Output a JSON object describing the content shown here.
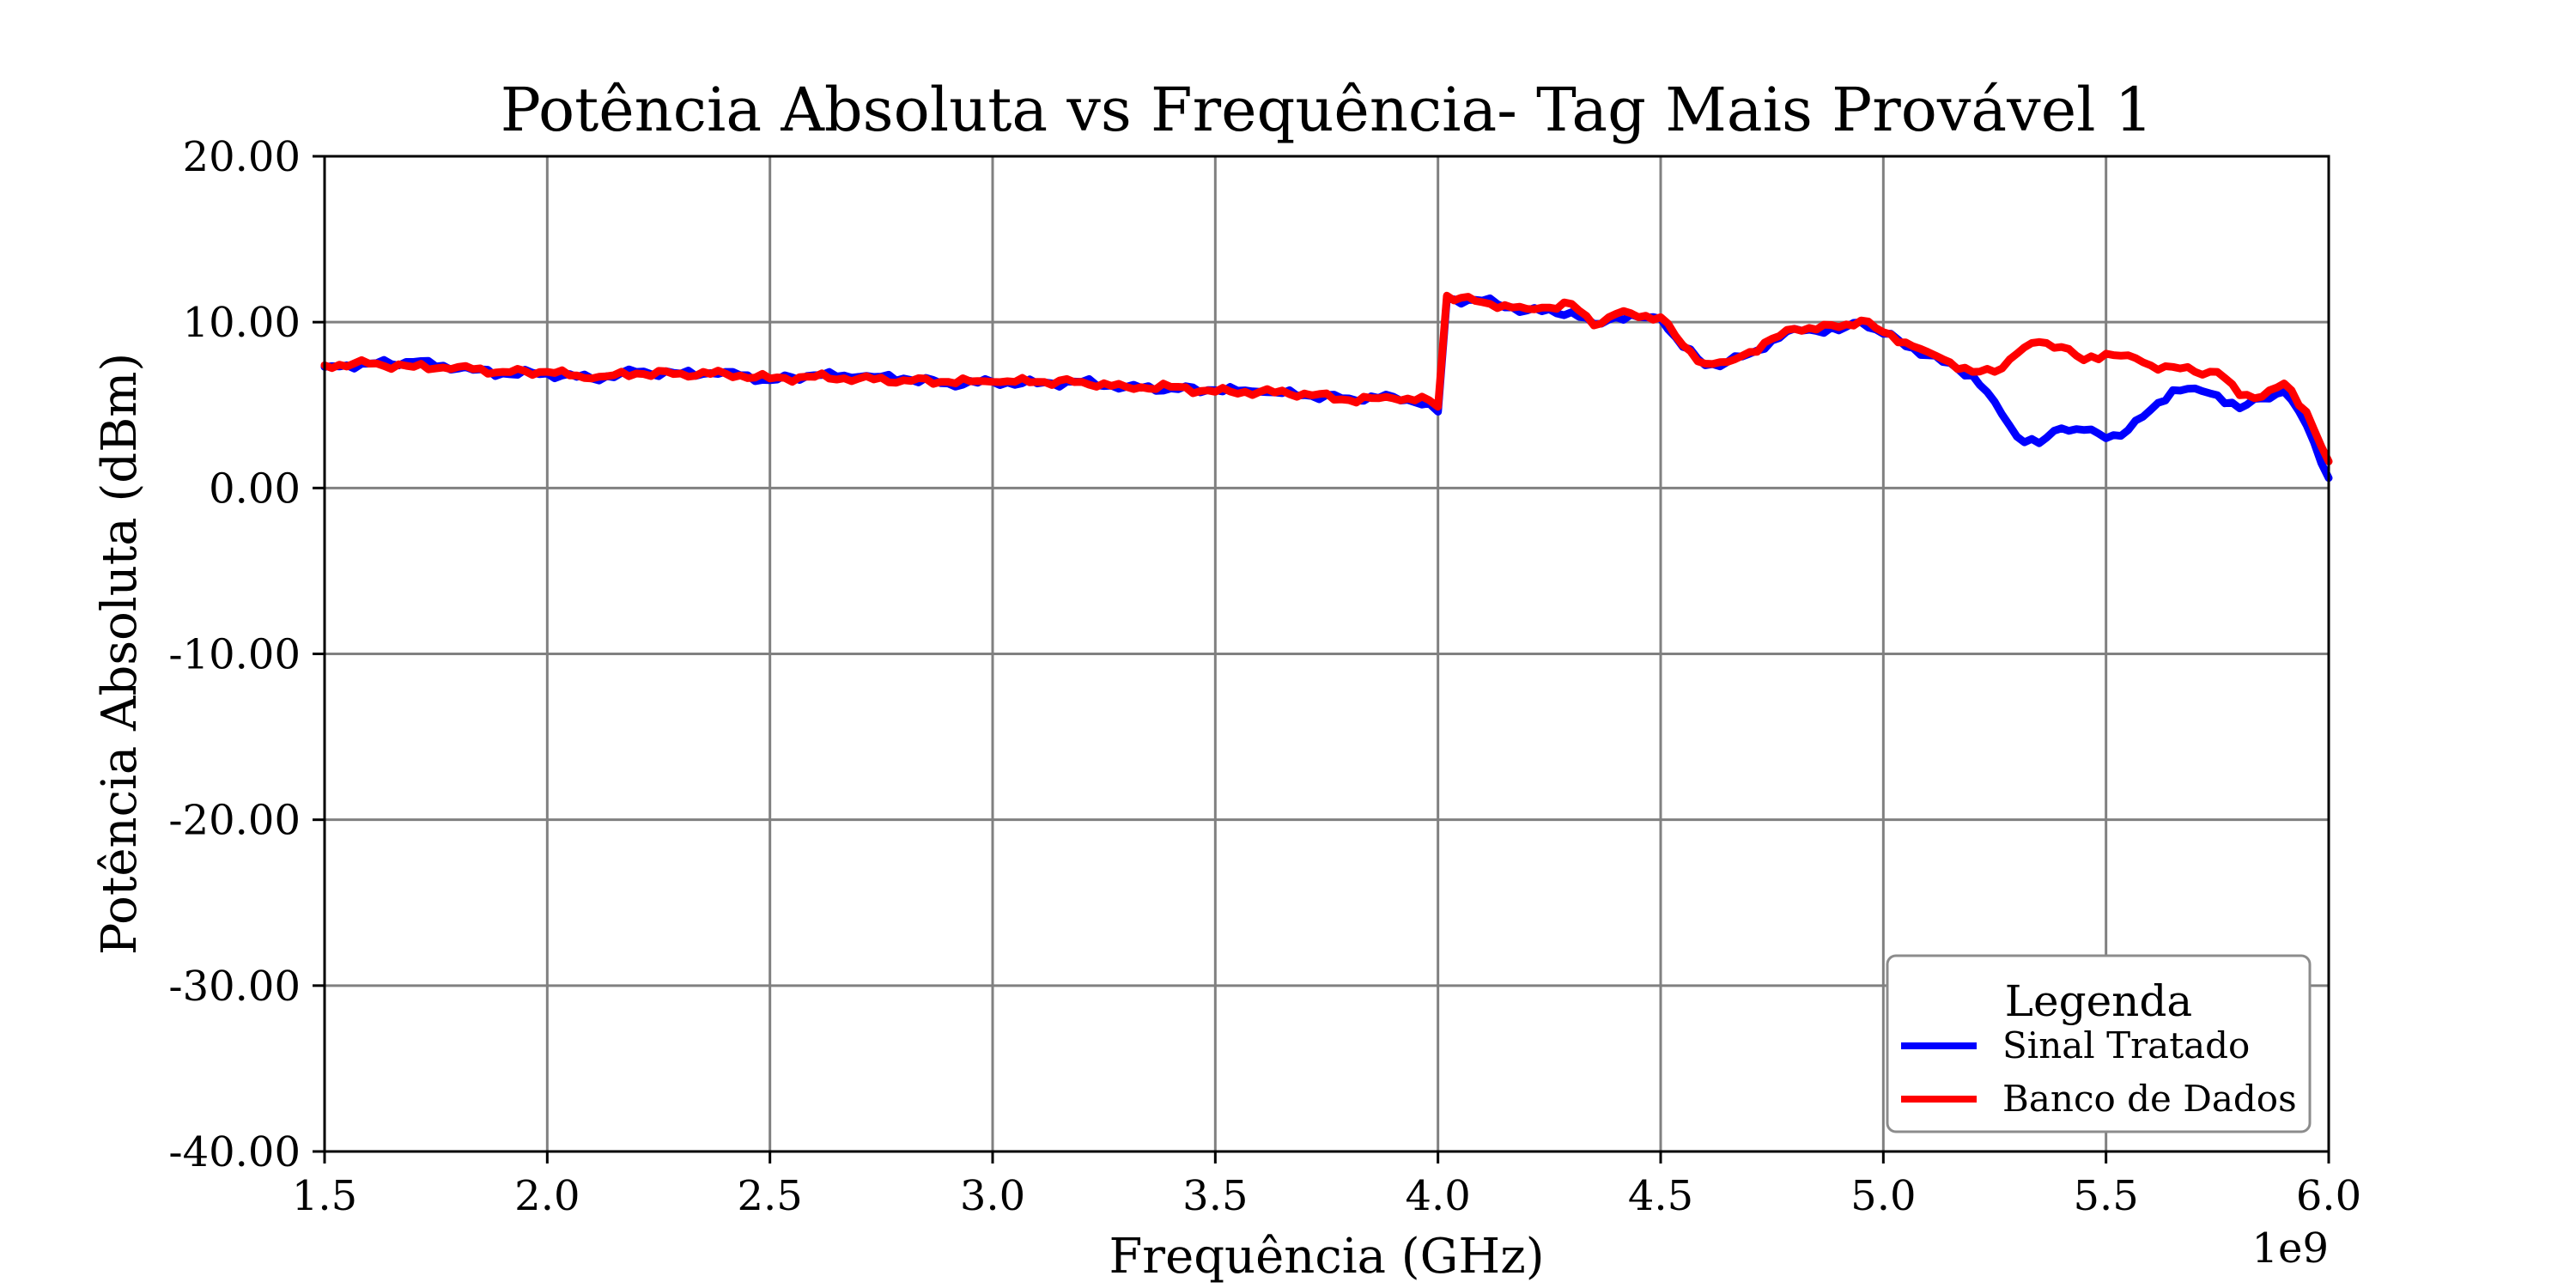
{
  "chart_data": {
    "type": "line",
    "title": "Potência Absoluta vs Frequência- Tag Mais Provável 1",
    "xlabel": "Frequência (GHz)",
    "ylabel": "Potência Absoluta (dBm)",
    "x_offset_label": "1e9",
    "xlim": [
      1.5,
      6.0
    ],
    "ylim": [
      -40,
      20
    ],
    "x_tick_labels": [
      "1.5",
      "2.0",
      "2.5",
      "3.0",
      "3.5",
      "4.0",
      "4.5",
      "5.0",
      "5.5",
      "6.0"
    ],
    "y_tick_labels": [
      "20.00",
      "10.00",
      "0.00",
      "-10.00",
      "-20.00",
      "-30.00",
      "-40.00"
    ],
    "grid": true,
    "legend": {
      "title": "Legenda",
      "placement": "lower-right"
    },
    "series": [
      {
        "name": "Sinal Tratado",
        "color": "#0000ff",
        "x": [
          1.5,
          1.6,
          1.7,
          1.8,
          1.9,
          2.0,
          2.1,
          2.2,
          2.3,
          2.4,
          2.5,
          2.6,
          2.7,
          2.8,
          2.9,
          3.0,
          3.1,
          3.2,
          3.3,
          3.4,
          3.5,
          3.6,
          3.7,
          3.8,
          3.9,
          3.98,
          4.0,
          4.02,
          4.1,
          4.2,
          4.3,
          4.35,
          4.4,
          4.5,
          4.55,
          4.6,
          4.65,
          4.7,
          4.8,
          4.9,
          4.95,
          5.0,
          5.1,
          5.2,
          5.25,
          5.3,
          5.35,
          5.4,
          5.45,
          5.5,
          5.55,
          5.6,
          5.65,
          5.7,
          5.75,
          5.8,
          5.85,
          5.9,
          5.95,
          6.0
        ],
        "y": [
          7.3,
          7.5,
          7.6,
          7.2,
          6.9,
          6.9,
          6.6,
          7.0,
          6.9,
          7.0,
          6.5,
          6.8,
          6.7,
          6.6,
          6.3,
          6.4,
          6.3,
          6.4,
          6.1,
          6.0,
          5.9,
          5.8,
          5.6,
          5.4,
          5.5,
          5.1,
          4.6,
          11.4,
          11.3,
          10.7,
          10.6,
          9.9,
          10.3,
          10.2,
          8.5,
          7.4,
          7.6,
          8.1,
          9.6,
          9.5,
          10.0,
          9.3,
          8.0,
          6.8,
          5.2,
          3.1,
          2.7,
          3.6,
          3.5,
          3.0,
          3.5,
          4.7,
          5.9,
          6.0,
          5.6,
          4.8,
          5.4,
          5.8,
          3.8,
          0.6
        ]
      },
      {
        "name": "Banco de Dados",
        "color": "#ff0000",
        "x": [
          1.5,
          1.6,
          1.7,
          1.8,
          1.9,
          2.0,
          2.1,
          2.2,
          2.3,
          2.4,
          2.5,
          2.6,
          2.7,
          2.8,
          2.9,
          3.0,
          3.1,
          3.2,
          3.3,
          3.4,
          3.5,
          3.6,
          3.7,
          3.8,
          3.9,
          3.98,
          4.0,
          4.02,
          4.1,
          4.2,
          4.3,
          4.35,
          4.4,
          4.5,
          4.55,
          4.6,
          4.65,
          4.7,
          4.8,
          4.9,
          4.95,
          5.0,
          5.1,
          5.2,
          5.25,
          5.3,
          5.35,
          5.4,
          5.45,
          5.5,
          5.55,
          5.6,
          5.65,
          5.7,
          5.75,
          5.8,
          5.85,
          5.9,
          5.95,
          6.0
        ],
        "y": [
          7.4,
          7.5,
          7.3,
          7.3,
          7.0,
          7.0,
          6.6,
          6.9,
          6.9,
          6.9,
          6.6,
          6.7,
          6.6,
          6.5,
          6.4,
          6.4,
          6.4,
          6.4,
          6.1,
          6.1,
          5.8,
          5.8,
          5.7,
          5.3,
          5.4,
          5.3,
          4.9,
          11.6,
          11.2,
          10.8,
          11.1,
          9.8,
          10.5,
          10.3,
          8.6,
          7.5,
          7.6,
          8.2,
          9.6,
          9.7,
          10.1,
          9.4,
          8.2,
          7.0,
          7.0,
          8.1,
          8.8,
          8.5,
          7.7,
          8.1,
          8.0,
          7.4,
          7.3,
          7.0,
          7.0,
          5.6,
          5.5,
          6.3,
          4.6,
          1.6
        ]
      }
    ]
  }
}
